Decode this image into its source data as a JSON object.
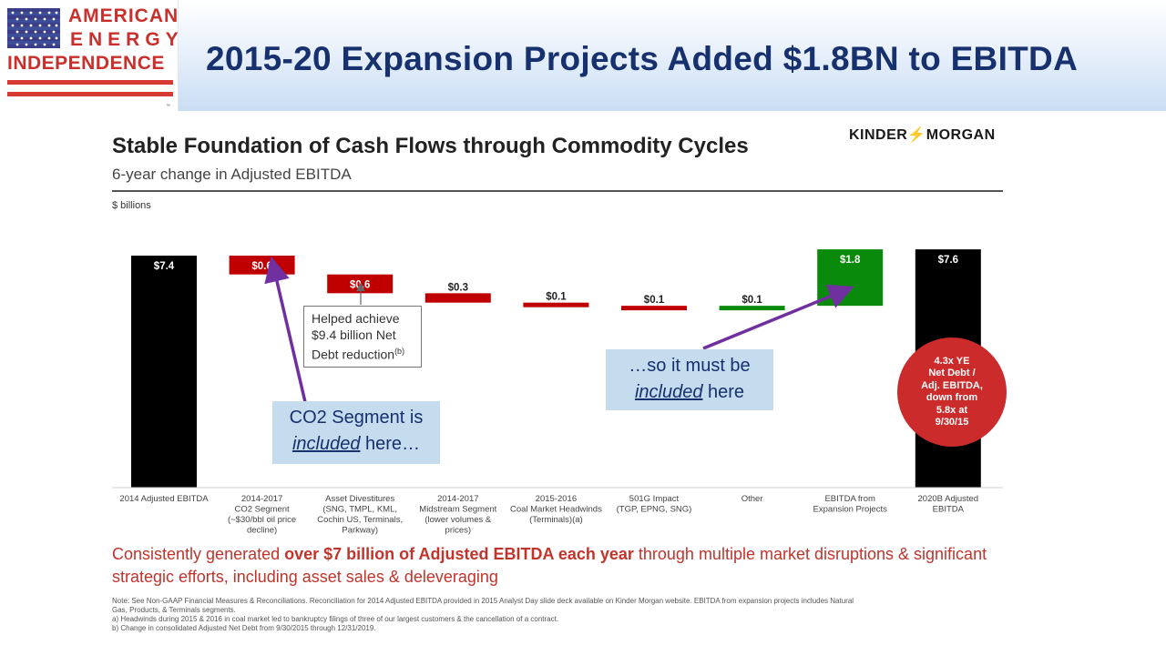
{
  "header": {
    "logo": {
      "line1": "AMERICAN",
      "line2": "ENERGY",
      "line3": "INDEPENDENCE",
      "tm": "™"
    },
    "title": "2015-20 Expansion Projects Added $1.8BN to EBITDA"
  },
  "slide": {
    "title": "Stable Foundation of Cash Flows through Commodity Cycles",
    "subtitle": "6-year change in Adjusted EBITDA",
    "brand_left": "KINDER",
    "brand_right": "MORGAN",
    "units": "$ billions"
  },
  "chart_data": {
    "type": "bar",
    "subtype": "waterfall",
    "units": "$ billions",
    "categories": [
      "2014 Adjusted EBITDA",
      "2014-2017 CO2 Segment (~$30/bbl oil price decline)",
      "Asset Divestitures (SNG, TMPL, KML, Cochin US, Terminals, Parkway)",
      "2014-2017 Midstream Segment (lower volumes & prices)",
      "2015-2016 Coal Market Headwinds (Terminals)(a)",
      "501G Impact (TGP, EPNG, SNG)",
      "Other",
      "EBITDA from Expansion Projects",
      "2020B Adjusted EBITDA"
    ],
    "category_lines": [
      [
        "2014 Adjusted EBITDA"
      ],
      [
        "2014-2017",
        "CO2 Segment",
        "(~$30/bbl oil price",
        "decline)"
      ],
      [
        "Asset Divestitures",
        "(SNG, TMPL, KML,",
        "Cochin US, Terminals,",
        "Parkway)"
      ],
      [
        "2014-2017",
        "Midstream Segment",
        "(lower volumes &",
        "prices)"
      ],
      [
        "2015-2016",
        "Coal Market Headwinds",
        "(Terminals)(a)"
      ],
      [
        "501G Impact",
        "(TGP, EPNG, SNG)"
      ],
      [
        "Other"
      ],
      [
        "EBITDA from",
        "Expansion Projects"
      ],
      [
        "2020B Adjusted",
        "EBITDA"
      ]
    ],
    "values": [
      7.4,
      -0.6,
      -0.6,
      -0.3,
      -0.1,
      -0.1,
      0.1,
      1.8,
      7.6
    ],
    "labels": [
      "$7.4",
      "$0.6",
      "$0.6",
      "$0.3",
      "$0.1",
      "$0.1",
      "$0.1",
      "$1.8",
      "$7.6"
    ],
    "kinds": [
      "total",
      "decrease",
      "decrease",
      "decrease",
      "decrease",
      "decrease",
      "increase",
      "increase",
      "total"
    ],
    "colors": {
      "total": "#000000",
      "decrease": "#c00000",
      "increase": "#0a8a0a",
      "arrow": "#7030a0"
    }
  },
  "annotations": {
    "divestiture_callout": {
      "line1": "Helped achieve",
      "line2": "$9.4 billion Net",
      "line3": "Debt reduction",
      "sup": "(b)"
    },
    "co2_note": {
      "line1": "CO2 Segment is",
      "emph": "included",
      "rest": " here…"
    },
    "expansion_note": {
      "line1": "…so it must be",
      "emph": "included",
      "rest": " here"
    },
    "leverage_badge": "4.3x YE\nNet Debt /\nAdj. EBITDA,\ndown from\n5.8x at\n9/30/15"
  },
  "statement": {
    "part1": "Consistently generated ",
    "bold": "over $7 billion of Adjusted EBITDA each year",
    "part2": " through multiple market disruptions & significant strategic efforts, including asset sales & deleveraging"
  },
  "footnotes": {
    "note_line1": "Note:  See Non-GAAP Financial Measures & Reconciliations. Reconciliation for 2014 Adjusted EBITDA provided in 2015 Analyst Day slide deck available on Kinder Morgan website. EBITDA from expansion projects includes Natural",
    "note_line2": "Gas, Products, & Terminals segments.",
    "a": "a)   Headwinds during 2015 & 2016 in coal market led to bankruptcy filings of three of our largest customers & the cancellation of a contract.",
    "b": "b)   Change in consolidated Adjusted Net Debt from 9/30/2015 through 12/31/2019."
  }
}
